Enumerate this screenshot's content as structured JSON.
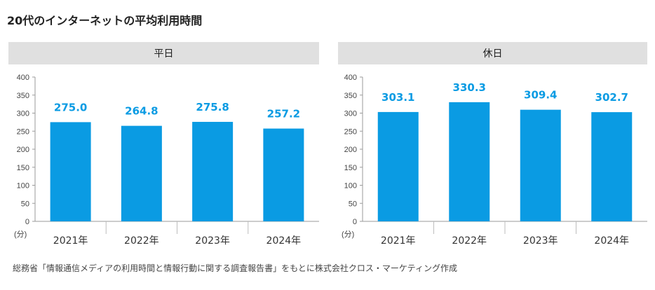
{
  "title": "20代のインターネットの平均利用時間",
  "source": "総務省「情報通信メディアの利用時間と情報行動に関する調査報告書」をもとに株式会社クロス・マーケティング作成",
  "colors": {
    "bar": "#0A9BE3",
    "label": "#0A9BE3",
    "header_bg": "#E0E0E0"
  },
  "chart_data": [
    {
      "type": "bar",
      "title": "平日",
      "categories": [
        "2021年",
        "2022年",
        "2023年",
        "2024年"
      ],
      "values": [
        275.0,
        264.8,
        275.8,
        257.2
      ],
      "value_labels": [
        "275.0",
        "264.8",
        "275.8",
        "257.2"
      ],
      "ylim": [
        0,
        400
      ],
      "yticks": [
        "0",
        "50",
        "100",
        "150",
        "200",
        "250",
        "300",
        "350",
        "400"
      ],
      "yunit": "(分)",
      "grid": false
    },
    {
      "type": "bar",
      "title": "休日",
      "categories": [
        "2021年",
        "2022年",
        "2023年",
        "2024年"
      ],
      "values": [
        303.1,
        330.3,
        309.4,
        302.7
      ],
      "value_labels": [
        "303.1",
        "330.3",
        "309.4",
        "302.7"
      ],
      "ylim": [
        0,
        400
      ],
      "yticks": [
        "0",
        "50",
        "100",
        "150",
        "200",
        "250",
        "300",
        "350",
        "400"
      ],
      "yunit": "(分)",
      "grid": false
    }
  ]
}
